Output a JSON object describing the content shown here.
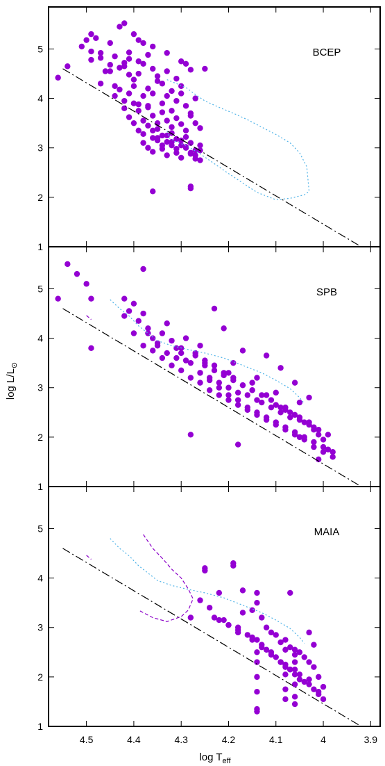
{
  "figure": {
    "ylabel_main": "log L/L",
    "ylabel_sub": "⊙",
    "xlabel_main": "log T",
    "xlabel_sub": "eff"
  },
  "colors": {
    "points": "#9400D3",
    "dotted_track": "#4FB3E8",
    "dashed_track": "#8B00C8",
    "zams_line": "#000000",
    "frame": "#000000"
  },
  "chart_data": [
    {
      "type": "scatter",
      "label": "BCEP",
      "xlabel": "log T_eff",
      "ylabel": "log L/L_⊙",
      "xlim": [
        4.58,
        3.88
      ],
      "ylim": [
        1,
        5.85
      ],
      "xticks": [
        4.5,
        4.4,
        4.3,
        4.2,
        4.1,
        4.0,
        3.9
      ],
      "yticks": [
        2,
        3,
        4,
        5
      ],
      "grid": false,
      "series": [
        {
          "style": "points",
          "x": [
            4.56,
            4.54,
            4.51,
            4.49,
            4.48,
            4.47,
            4.46,
            4.45,
            4.44,
            4.43,
            4.42,
            4.41,
            4.5,
            4.49,
            4.47,
            4.45,
            4.43,
            4.41,
            4.4,
            4.39,
            4.38,
            4.37,
            4.47,
            4.45,
            4.44,
            4.42,
            4.41,
            4.4,
            4.39,
            4.38,
            4.37,
            4.36,
            4.35,
            4.34,
            4.33,
            4.32,
            4.31,
            4.3,
            4.29,
            4.28,
            4.44,
            4.43,
            4.42,
            4.41,
            4.4,
            4.39,
            4.38,
            4.37,
            4.36,
            4.35,
            4.34,
            4.33,
            4.32,
            4.31,
            4.3,
            4.29,
            4.28,
            4.27,
            4.42,
            4.41,
            4.4,
            4.39,
            4.38,
            4.37,
            4.36,
            4.35,
            4.34,
            4.33,
            4.32,
            4.31,
            4.3,
            4.29,
            4.28,
            4.27,
            4.26,
            4.4,
            4.39,
            4.38,
            4.37,
            4.36,
            4.35,
            4.34,
            4.33,
            4.32,
            4.31,
            4.3,
            4.29,
            4.28,
            4.27,
            4.26,
            4.38,
            4.37,
            4.36,
            4.35,
            4.34,
            4.33,
            4.32,
            4.31,
            4.3,
            4.29,
            4.28,
            4.27,
            4.26,
            4.36,
            4.35,
            4.34,
            4.33,
            4.32,
            4.31,
            4.3,
            4.29,
            4.28,
            4.27,
            4.49,
            4.42,
            4.39,
            4.36,
            4.33,
            4.3,
            4.28,
            4.28,
            4.26,
            4.25,
            4.36
          ],
          "y": [
            4.42,
            4.65,
            5.05,
            4.78,
            5.22,
            4.92,
            4.55,
            5.12,
            4.85,
            4.62,
            4.72,
            4.48,
            5.18,
            4.95,
            4.82,
            4.68,
            5.45,
            4.93,
            5.3,
            4.75,
            5.12,
            4.88,
            4.3,
            4.55,
            4.25,
            4.65,
            4.8,
            4.38,
            4.5,
            4.7,
            4.2,
            4.6,
            4.45,
            4.3,
            4.55,
            4.15,
            4.4,
            4.25,
            4.7,
            4.58,
            4.05,
            4.18,
            3.95,
            4.1,
            4.25,
            3.88,
            4.05,
            3.82,
            4.1,
            4.35,
            3.9,
            4.05,
            3.75,
            3.95,
            4.1,
            3.85,
            3.7,
            4.0,
            3.8,
            3.62,
            3.9,
            3.75,
            3.55,
            3.85,
            3.65,
            3.5,
            3.72,
            3.55,
            3.42,
            3.6,
            3.48,
            3.35,
            3.65,
            3.5,
            3.4,
            3.5,
            3.35,
            3.28,
            3.45,
            3.2,
            3.38,
            3.25,
            3.12,
            3.3,
            3.18,
            3.05,
            3.22,
            3.1,
            2.95,
            3.05,
            3.1,
            3.0,
            2.92,
            3.15,
            2.98,
            2.85,
            3.05,
            2.9,
            2.8,
            3.0,
            2.88,
            2.78,
            2.95,
            3.35,
            3.2,
            3.05,
            3.25,
            3.12,
            2.98,
            3.15,
            3.02,
            2.9,
            2.85,
            5.3,
            5.52,
            5.18,
            5.05,
            4.92,
            4.75,
            2.22,
            2.18,
            2.75,
            4.6,
            2.12
          ]
        },
        {
          "style": "dotted",
          "x": [
            4.33,
            4.31,
            4.29,
            4.27,
            4.25,
            4.22,
            4.19,
            4.16,
            4.13,
            4.1,
            4.07,
            4.05,
            4.035,
            4.03,
            4.04,
            4.07,
            4.1,
            4.14,
            4.2,
            4.26,
            4.29,
            4.31,
            4.325,
            4.33
          ],
          "y": [
            4.38,
            4.3,
            4.22,
            4.08,
            3.95,
            3.82,
            3.7,
            3.57,
            3.42,
            3.27,
            3.1,
            2.9,
            2.62,
            2.12,
            2.05,
            1.98,
            1.95,
            2.1,
            2.48,
            2.88,
            3.05,
            3.12,
            3.2,
            3.35
          ]
        },
        {
          "style": "dashdot",
          "x": [
            4.55,
            3.92
          ],
          "y": [
            4.6,
            1.0
          ]
        }
      ]
    },
    {
      "type": "scatter",
      "label": "SPB",
      "xlabel": "log T_eff",
      "ylabel": "log L/L_⊙",
      "xlim": [
        4.58,
        3.88
      ],
      "ylim": [
        1,
        5.85
      ],
      "xticks": [
        4.5,
        4.4,
        4.3,
        4.2,
        4.1,
        4.0,
        3.9
      ],
      "yticks": [
        2,
        3,
        4,
        5
      ],
      "grid": false,
      "series": [
        {
          "style": "points",
          "x": [
            4.56,
            4.54,
            4.52,
            4.5,
            4.49,
            4.49,
            4.42,
            4.41,
            4.4,
            4.39,
            4.38,
            4.37,
            4.36,
            4.35,
            4.34,
            4.33,
            4.32,
            4.31,
            4.3,
            4.29,
            4.28,
            4.27,
            4.26,
            4.25,
            4.24,
            4.23,
            4.22,
            4.21,
            4.2,
            4.19,
            4.18,
            4.17,
            4.16,
            4.15,
            4.14,
            4.13,
            4.12,
            4.11,
            4.1,
            4.09,
            4.08,
            4.07,
            4.06,
            4.05,
            4.04,
            4.03,
            4.02,
            4.01,
            4.0,
            3.99,
            3.98,
            4.38,
            4.36,
            4.34,
            4.32,
            4.3,
            4.28,
            4.26,
            4.24,
            4.22,
            4.2,
            4.18,
            4.16,
            4.14,
            4.12,
            4.1,
            4.08,
            4.06,
            4.04,
            4.02,
            4.0,
            4.4,
            4.35,
            4.3,
            4.25,
            4.2,
            4.15,
            4.1,
            4.05,
            4.27,
            4.25,
            4.23,
            4.21,
            4.19,
            4.17,
            4.15,
            4.13,
            4.11,
            4.09,
            4.07,
            4.05,
            4.03,
            4.01,
            3.99,
            4.26,
            4.24,
            4.22,
            4.2,
            4.18,
            4.16,
            4.14,
            4.12,
            4.1,
            4.08,
            4.06,
            4.04,
            4.02,
            4.0,
            3.98,
            4.28,
            4.18,
            4.38,
            4.42,
            4.37,
            4.33,
            4.29,
            4.23,
            4.21,
            4.17,
            4.12,
            4.09,
            4.06,
            4.03,
            4.02,
            4.31,
            4.26,
            4.19,
            4.14,
            4.08,
            4.05,
            4.01
          ],
          "y": [
            4.8,
            5.5,
            5.3,
            5.1,
            4.8,
            3.8,
            4.8,
            4.55,
            4.7,
            4.35,
            4.5,
            4.2,
            4.0,
            3.85,
            4.1,
            3.7,
            3.95,
            3.6,
            3.8,
            3.55,
            3.5,
            3.65,
            3.3,
            3.45,
            3.2,
            3.35,
            3.1,
            3.25,
            3.0,
            3.15,
            2.9,
            3.05,
            2.85,
            2.95,
            2.75,
            2.7,
            2.85,
            2.6,
            2.65,
            2.5,
            2.55,
            2.4,
            2.45,
            2.35,
            2.3,
            2.25,
            2.15,
            2.05,
            1.95,
            1.75,
            1.6,
            3.85,
            3.75,
            3.6,
            3.45,
            3.35,
            3.2,
            3.1,
            2.95,
            2.85,
            2.75,
            2.65,
            2.55,
            2.45,
            2.35,
            2.25,
            2.15,
            2.05,
            1.95,
            1.8,
            1.7,
            4.1,
            3.9,
            3.7,
            3.5,
            3.3,
            3.1,
            2.9,
            2.7,
            3.7,
            3.55,
            3.45,
            3.3,
            3.2,
            3.05,
            2.95,
            2.85,
            2.75,
            2.6,
            2.5,
            2.4,
            2.3,
            2.15,
            2.05,
            3.3,
            3.15,
            3.0,
            2.85,
            2.75,
            2.6,
            2.5,
            2.4,
            2.3,
            2.2,
            2.1,
            2.0,
            1.9,
            1.8,
            1.7,
            2.05,
            1.85,
            5.4,
            4.45,
            4.1,
            4.3,
            4.0,
            4.6,
            4.2,
            3.75,
            3.65,
            3.4,
            3.1,
            2.8,
            2.2,
            3.8,
            3.85,
            3.5,
            3.2,
            2.6,
            2.0,
            1.55
          ]
        },
        {
          "style": "dotted",
          "x": [
            4.45,
            4.43,
            4.41,
            4.39,
            4.37,
            4.35,
            4.32,
            4.29,
            4.25,
            4.21,
            4.17,
            4.13,
            4.1,
            4.07,
            4.05,
            4.04
          ],
          "y": [
            4.78,
            4.6,
            4.45,
            4.25,
            4.1,
            3.95,
            3.85,
            3.78,
            3.7,
            3.6,
            3.45,
            3.3,
            3.15,
            2.98,
            2.8,
            2.68
          ]
        },
        {
          "style": "dashed",
          "x": [
            4.5,
            4.49
          ],
          "y": [
            4.46,
            4.38
          ]
        },
        {
          "style": "dashdot",
          "x": [
            4.55,
            3.92
          ],
          "y": [
            4.6,
            1.0
          ]
        }
      ]
    },
    {
      "type": "scatter",
      "label": "MAIA",
      "xlabel": "log T_eff",
      "ylabel": "log L/L_⊙",
      "xlim": [
        4.58,
        3.88
      ],
      "ylim": [
        1,
        5.85
      ],
      "xticks": [
        4.5,
        4.4,
        4.3,
        4.2,
        4.1,
        4.0,
        3.9
      ],
      "yticks": [
        2,
        3,
        4,
        5
      ],
      "grid": false,
      "series": [
        {
          "style": "points",
          "x": [
            4.25,
            4.22,
            4.19,
            4.17,
            4.15,
            4.14,
            4.13,
            4.12,
            4.11,
            4.1,
            4.09,
            4.08,
            4.07,
            4.06,
            4.05,
            4.04,
            4.03,
            4.02,
            4.01,
            4.0,
            4.24,
            4.23,
            4.21,
            4.2,
            4.18,
            4.16,
            4.15,
            4.14,
            4.13,
            4.12,
            4.11,
            4.1,
            4.09,
            4.08,
            4.07,
            4.06,
            4.05,
            4.04,
            4.03,
            4.02,
            4.01,
            4.14,
            4.14,
            4.14,
            4.14,
            4.14,
            4.06,
            4.06,
            4.06,
            4.06,
            4.06,
            4.06,
            4.08,
            4.08,
            4.08,
            4.08,
            4.08,
            4.2,
            4.18,
            4.15,
            4.13,
            4.11,
            4.09,
            4.07,
            4.05,
            4.03,
            4.01,
            4.03,
            4.0,
            4.25,
            4.19,
            4.18,
            4.14,
            4.07,
            4.02,
            4.17,
            4.14,
            4.22,
            4.26,
            4.28
          ],
          "y": [
            4.15,
            3.7,
            4.3,
            3.75,
            3.35,
            3.5,
            3.2,
            3.0,
            2.9,
            2.85,
            2.7,
            2.75,
            2.6,
            2.55,
            2.5,
            2.4,
            2.3,
            2.2,
            2.0,
            1.8,
            3.4,
            3.2,
            3.15,
            3.05,
            2.95,
            2.85,
            2.8,
            2.75,
            2.65,
            2.55,
            2.5,
            2.4,
            2.3,
            2.2,
            2.15,
            2.05,
            1.95,
            1.9,
            1.85,
            1.75,
            1.65,
            2.5,
            2.3,
            2.0,
            1.7,
            1.35,
            2.45,
            2.15,
            1.85,
            1.6,
            1.45,
            2.3,
            2.55,
            2.25,
            2.05,
            1.75,
            1.55,
            3.05,
            2.9,
            2.75,
            2.6,
            2.45,
            2.3,
            2.15,
            2.05,
            1.95,
            1.7,
            2.9,
            1.55,
            4.2,
            4.25,
            3.0,
            3.7,
            3.7,
            2.65,
            3.3,
            1.3,
            3.15,
            3.55,
            3.2
          ]
        },
        {
          "style": "dotted",
          "x": [
            4.45,
            4.43,
            4.41,
            4.39,
            4.37,
            4.35,
            4.32,
            4.29,
            4.25,
            4.21,
            4.17,
            4.13,
            4.1,
            4.07,
            4.05,
            4.04
          ],
          "y": [
            4.8,
            4.6,
            4.45,
            4.25,
            4.1,
            3.95,
            3.85,
            3.78,
            3.7,
            3.6,
            3.45,
            3.3,
            3.15,
            2.98,
            2.8,
            2.68
          ]
        },
        {
          "style": "dashed",
          "x": [
            4.38,
            4.36,
            4.34,
            4.32,
            4.3,
            4.285,
            4.275,
            4.285,
            4.3,
            4.33,
            4.36,
            4.39
          ],
          "y": [
            4.88,
            4.6,
            4.4,
            4.18,
            4.0,
            3.78,
            3.58,
            3.35,
            3.22,
            3.12,
            3.2,
            3.35
          ]
        },
        {
          "style": "dashed",
          "x": [
            4.5,
            4.49
          ],
          "y": [
            4.46,
            4.38
          ]
        },
        {
          "style": "dashdot",
          "x": [
            4.55,
            3.92
          ],
          "y": [
            4.6,
            1.0
          ]
        }
      ]
    }
  ]
}
